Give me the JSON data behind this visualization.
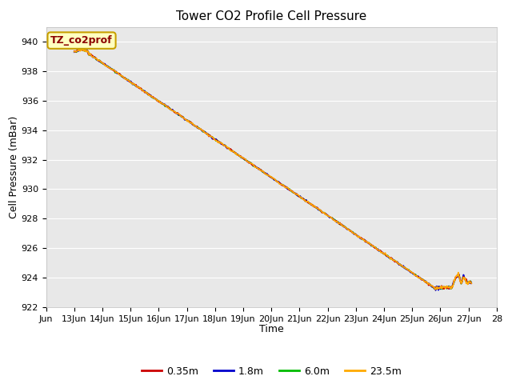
{
  "title": "Tower CO2 Profile Cell Pressure",
  "xlabel": "Time",
  "ylabel": "Cell Pressure (mBar)",
  "ylim": [
    922,
    941
  ],
  "yticks": [
    922,
    924,
    926,
    928,
    930,
    932,
    934,
    936,
    938,
    940
  ],
  "fig_bg_color": "#ffffff",
  "plot_bg_color": "#e8e8e8",
  "grid_color": "#ffffff",
  "legend_label": "TZ_co2prof",
  "legend_box_color": "#ffffc0",
  "legend_box_edge": "#c8a000",
  "series": [
    {
      "label": "0.35m",
      "color": "#cc0000",
      "lw": 1.2
    },
    {
      "label": "1.8m",
      "color": "#0000cc",
      "lw": 1.2
    },
    {
      "label": "6.0m",
      "color": "#00bb00",
      "lw": 1.2
    },
    {
      "label": "23.5m",
      "color": "#ffaa00",
      "lw": 1.2
    }
  ],
  "x_start_day": 12.0,
  "x_end_day": 28.0,
  "x_tick_days": [
    12,
    13,
    14,
    15,
    16,
    17,
    18,
    19,
    20,
    21,
    22,
    23,
    24,
    25,
    26,
    27,
    28
  ],
  "x_tick_labels": [
    "Jun",
    "13Jun",
    "14Jun",
    "15Jun",
    "16Jun",
    "17Jun",
    "18Jun",
    "19Jun",
    "20Jun",
    "21Jun",
    "22Jun",
    "23Jun",
    "24Jun",
    "25Jun",
    "26Jun",
    "27Jun",
    "28"
  ],
  "title_fontsize": 11,
  "axis_label_fontsize": 9,
  "tick_fontsize": 8
}
